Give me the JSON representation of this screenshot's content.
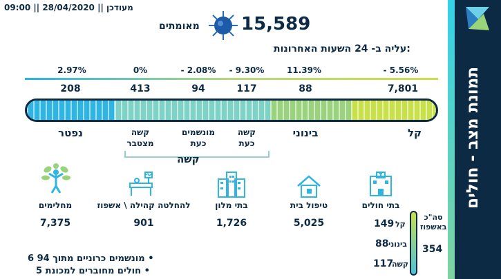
{
  "header": {
    "updated": "מעודכן || 28/04/2020 || 09:00",
    "confirmed_value": "15,589",
    "confirmed_label": "מאומתים",
    "rise_label": "עליה ב- 24 השעות האחרונות:"
  },
  "side_title": "תמונת מצב - חולים",
  "categories": [
    {
      "key": "mild",
      "pct": "- 5.56%",
      "value": "7,801",
      "label": "קל"
    },
    {
      "key": "moderate",
      "pct": "11.39%",
      "value": "88",
      "label": "בינוני"
    },
    {
      "key": "serious_now",
      "pct": "- 9.30%",
      "value": "117",
      "label1": "קשה",
      "label2": "כעת"
    },
    {
      "key": "ventilated_now",
      "pct": "- 2.08%",
      "value": "94",
      "label1": "מונשמים",
      "label2": "כעת"
    },
    {
      "key": "serious_cumulative",
      "pct": "0%",
      "value": "413",
      "label1": "קשה",
      "label2": "מצטבר"
    },
    {
      "key": "deceased",
      "pct": "2.97%",
      "value": "208",
      "label": "נפטר"
    }
  ],
  "hard_group_label": "קשה",
  "tiles": [
    {
      "label": "בתי חולים",
      "value": ""
    },
    {
      "label": "טיפול בית",
      "value": "5,025"
    },
    {
      "label": "בתי מלון",
      "value": "1,726"
    },
    {
      "label": "להחלטה קהילה \\ אשפוז",
      "value": "901"
    },
    {
      "label": "מחלימים",
      "value": "7,375"
    }
  ],
  "hospital_summary": {
    "total_label1": "סה\"כ",
    "total_label2": "באשפוז",
    "total_value": "354",
    "rows": [
      {
        "label": "קל",
        "value": "149"
      },
      {
        "label": "בינוני",
        "value": "88"
      },
      {
        "label": "קשה",
        "value": "117"
      }
    ]
  },
  "bullets": [
    "6 מונשמים כרוניים מתוך 94",
    "5 חולים מחוברים למכונת"
  ],
  "colors": {
    "navy": "#0d2a45",
    "mild": "#c8e04a",
    "moderate": "#9bd27e",
    "hard": "#7fd3c6",
    "deceased": "#2fb5e2"
  }
}
